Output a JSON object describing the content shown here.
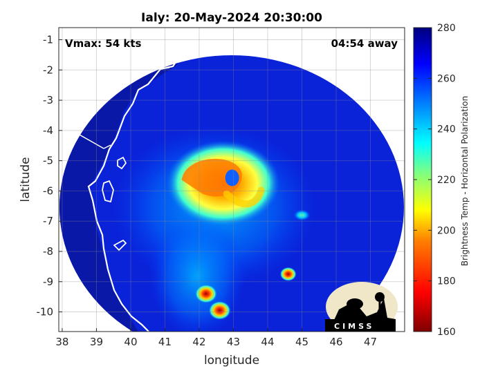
{
  "chart_data": {
    "type": "heatmap",
    "title": "Ialy: 20-May-2024 20:30:00",
    "xlabel": "longitude",
    "ylabel": "latitude",
    "xlim": [
      37.9,
      48
    ],
    "ylim": [
      -10.65,
      -0.6
    ],
    "xticks": [
      38,
      39,
      40,
      41,
      42,
      43,
      44,
      45,
      46,
      47
    ],
    "yticks": [
      -1,
      -2,
      -3,
      -4,
      -5,
      -6,
      -7,
      -8,
      -9,
      -10
    ],
    "grid": true,
    "annotations": {
      "left": "Vmax: 54 kts",
      "right": "04:54 away"
    },
    "colorbar": {
      "label": "Brightness Temp - Horizontal Polarization",
      "range": [
        160,
        280
      ],
      "ticks": [
        160,
        180,
        200,
        220,
        240,
        260,
        280
      ]
    },
    "center": {
      "lon": 43.0,
      "lat": -5.8
    },
    "features": [
      {
        "kind": "eyewall",
        "lon": 42.7,
        "lat": -5.75,
        "value": 190
      },
      {
        "kind": "rainband",
        "lon": 42.2,
        "lat": -9.4,
        "value": 170
      },
      {
        "kind": "rainband",
        "lon": 42.6,
        "lat": -9.95,
        "value": 180
      },
      {
        "kind": "convection",
        "lon": 44.6,
        "lat": -8.75,
        "value": 185
      },
      {
        "kind": "convection",
        "lon": 45.0,
        "lat": -6.8,
        "value": 230
      }
    ],
    "logo": "CIMSS"
  }
}
